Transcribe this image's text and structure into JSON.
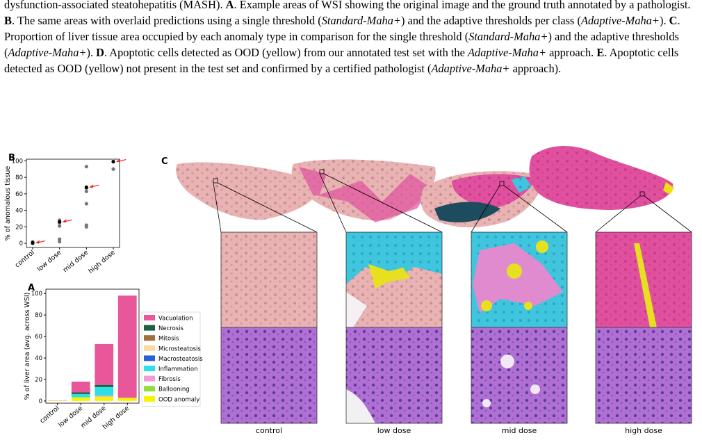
{
  "caption": [
    {
      "text": "dysfunction-associated steatohepatitis (MASH). ",
      "style": "normal"
    },
    {
      "text": "A",
      "style": "bold"
    },
    {
      "text": ". Example areas of WSI showing the original image and the ground truth annotated by a pathologist. ",
      "style": "normal"
    },
    {
      "text": "B",
      "style": "bold"
    },
    {
      "text": ". The same areas with overlaid predictions using a single threshold (",
      "style": "normal"
    },
    {
      "text": "Standard-Maha+",
      "style": "italic"
    },
    {
      "text": ") and the adaptive thresholds per class (",
      "style": "normal"
    },
    {
      "text": "Adaptive-Maha+",
      "style": "italic"
    },
    {
      "text": "). ",
      "style": "normal"
    },
    {
      "text": "C",
      "style": "bold"
    },
    {
      "text": ". Proportion of liver tissue area occupied by each anomaly type in comparison for the single threshold (",
      "style": "normal"
    },
    {
      "text": "Standard-Maha+",
      "style": "italic"
    },
    {
      "text": ") and the adaptive thresholds (",
      "style": "normal"
    },
    {
      "text": "Adaptive-Maha+",
      "style": "italic"
    },
    {
      "text": "). ",
      "style": "normal"
    },
    {
      "text": "D",
      "style": "bold"
    },
    {
      "text": ". Apoptotic cells detected as OOD (yellow) from our annotated test set with the ",
      "style": "normal"
    },
    {
      "text": "Adaptive-Maha+",
      "style": "italic"
    },
    {
      "text": " approach. ",
      "style": "normal"
    },
    {
      "text": "E",
      "style": "bold"
    },
    {
      "text": ". Apoptotic cells detected as OOD (yellow) not present in the test set and confirmed by a certified pathologist (",
      "style": "normal"
    },
    {
      "text": "Adaptive-Maha+",
      "style": "italic"
    },
    {
      "text": " approach).",
      "style": "normal"
    }
  ],
  "chart_data": [
    {
      "type": "scatter",
      "panel": "B",
      "ylabel": "% of anomalous tissue",
      "categories": [
        "control",
        "low dose",
        "mid dose",
        "high dose"
      ],
      "ylim": [
        -5,
        102
      ],
      "yticks": [
        0,
        20,
        40,
        60,
        80,
        100
      ],
      "series": [
        {
          "color": "#777777",
          "x": [
            "control",
            "control",
            "control",
            "control",
            "low dose",
            "low dose",
            "low dose",
            "low dose",
            "low dose",
            "mid dose",
            "mid dose",
            "mid dose",
            "mid dose",
            "mid dose",
            "mid dose",
            "high dose",
            "high dose"
          ],
          "values": [
            0,
            1,
            2,
            0,
            2,
            5,
            21,
            25,
            28,
            20,
            22,
            48,
            63,
            67,
            93,
            90,
            99
          ]
        },
        {
          "color": "#000000",
          "arrow_color": "#e8261c",
          "x": [
            "control",
            "low dose",
            "mid dose",
            "high dose"
          ],
          "values": [
            0.5,
            26,
            68,
            99
          ]
        }
      ]
    },
    {
      "type": "stacked_bar",
      "panel": "A",
      "ylabel": "% of liver area (avg. across WSI)",
      "categories": [
        "control",
        "low dose",
        "mid dose",
        "high dose"
      ],
      "ylim": [
        -2,
        104
      ],
      "yticks": [
        0,
        20,
        40,
        60,
        80,
        100
      ],
      "series": [
        {
          "name": "OOD anomaly",
          "color": "#f5f500",
          "values": [
            0.3,
            3.5,
            4,
            3
          ]
        },
        {
          "name": "Ballooning",
          "color": "#8fe03a",
          "values": [
            0,
            0,
            0,
            0
          ]
        },
        {
          "name": "Fibrosis",
          "color": "#f59ad6",
          "values": [
            0,
            0,
            1,
            0
          ]
        },
        {
          "name": "Inflammation",
          "color": "#2de0e6",
          "values": [
            0,
            3,
            8,
            0
          ]
        },
        {
          "name": "Macrosteatosis",
          "color": "#2a5fd6",
          "values": [
            0,
            0,
            0,
            0
          ]
        },
        {
          "name": "Microsteatosis",
          "color": "#f9d9a0",
          "values": [
            0,
            0,
            0,
            0
          ]
        },
        {
          "name": "Mitosis",
          "color": "#a0703c",
          "values": [
            0,
            0,
            0,
            0
          ]
        },
        {
          "name": "Necrosis",
          "color": "#1b5e42",
          "values": [
            0,
            1.5,
            2,
            0
          ]
        },
        {
          "name": "Vacuolation",
          "color": "#e8579a",
          "values": [
            0.2,
            10,
            38,
            95
          ]
        }
      ]
    }
  ],
  "panel_c": {
    "label": "C",
    "columns": [
      "control",
      "low dose",
      "mid dose",
      "high dose"
    ]
  }
}
